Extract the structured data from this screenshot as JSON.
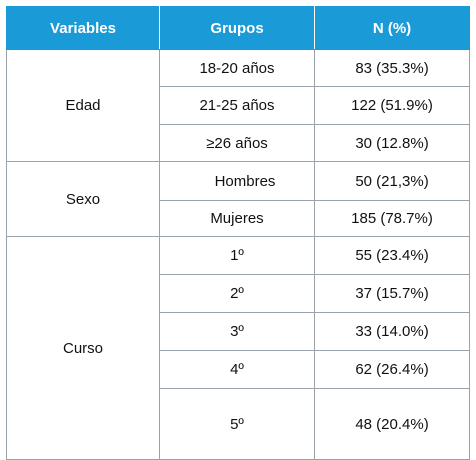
{
  "table": {
    "headers": [
      "Variables",
      "Grupos",
      "N (%)"
    ],
    "sections": [
      {
        "variable": "Edad",
        "rows": [
          {
            "grupo": "18-20 años",
            "n": "83 (35.3%)"
          },
          {
            "grupo": "21-25 años",
            "n": "122 (51.9%)"
          },
          {
            "grupo": "≥26 años",
            "n": "30 (12.8%)"
          }
        ]
      },
      {
        "variable": "Sexo",
        "rows": [
          {
            "grupo": "Hombres",
            "n": "50 (21,3%)"
          },
          {
            "grupo": "Mujeres",
            "n": "185 (78.7%)"
          }
        ]
      },
      {
        "variable": "Curso",
        "rows": [
          {
            "grupo": "1º",
            "n": "55 (23.4%)"
          },
          {
            "grupo": "2º",
            "n": "37 (15.7%)"
          },
          {
            "grupo": "3º",
            "n": "33 (14.0%)"
          },
          {
            "grupo": "4º",
            "n": "62 (26.4%)"
          },
          {
            "grupo": "5º",
            "n": "48 (20.4%)"
          }
        ]
      }
    ]
  },
  "colors": {
    "header_bg": "#1a9ad6",
    "header_text": "#ffffff",
    "border": "#9aa3ab"
  }
}
